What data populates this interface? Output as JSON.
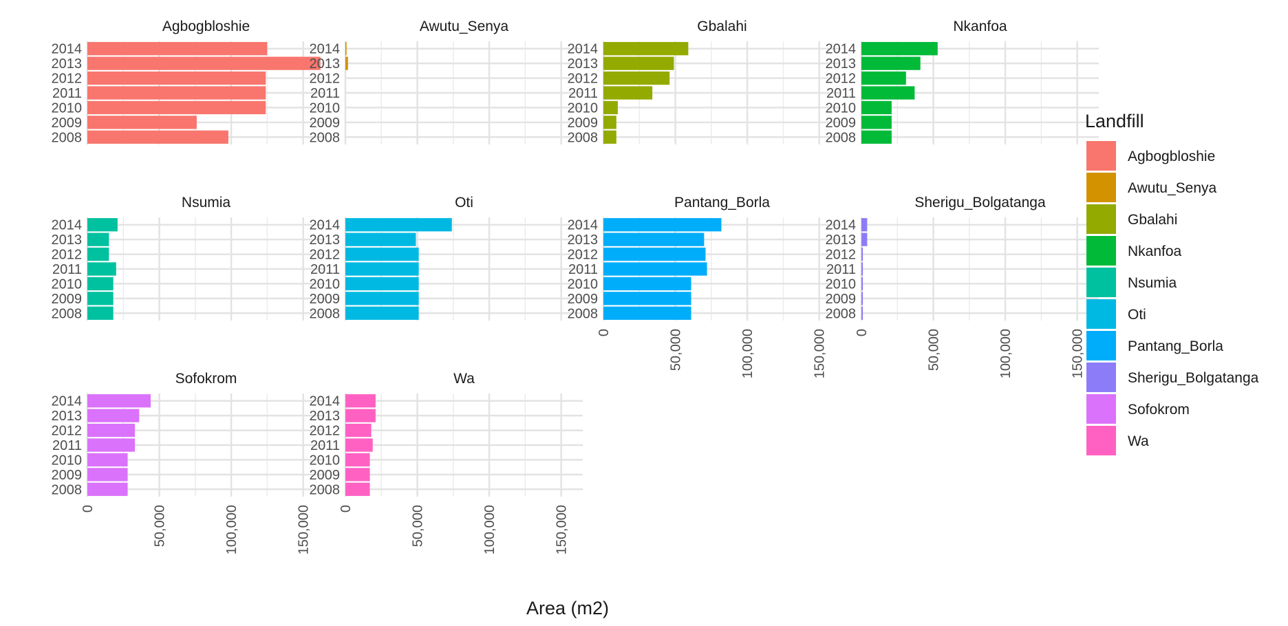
{
  "chart_data": {
    "type": "bar",
    "orientation": "horizontal",
    "facet_layout": "4 columns x 3 rows",
    "years": [
      "2014",
      "2013",
      "2012",
      "2011",
      "2010",
      "2009",
      "2008"
    ],
    "xlabel": "Area (m2)",
    "ylabel": "",
    "xlim": [
      0,
      165000
    ],
    "x_ticks": [
      0,
      50000,
      100000,
      150000
    ],
    "x_tick_labels": [
      "0",
      "50,000",
      "100,000",
      "150,000"
    ],
    "grid": true,
    "legend_title": "Landfill",
    "legend_position": "right",
    "series": [
      {
        "name": "Agbogbloshie",
        "color": "#F8766D",
        "values": [
          125000,
          162000,
          124000,
          124000,
          124000,
          76000,
          98000
        ]
      },
      {
        "name": "Awutu_Senya",
        "color": "#D39200",
        "values": [
          800,
          1800,
          0,
          0,
          0,
          0,
          0
        ]
      },
      {
        "name": "Gbalahi",
        "color": "#93AA00",
        "values": [
          59000,
          49000,
          46000,
          34000,
          10000,
          9000,
          9000
        ]
      },
      {
        "name": "Nkanfoa",
        "color": "#00BA38",
        "values": [
          53000,
          41000,
          31000,
          37000,
          21000,
          21000,
          21000
        ]
      },
      {
        "name": "Nsumia",
        "color": "#00C19F",
        "values": [
          21000,
          15000,
          15000,
          20000,
          18000,
          18000,
          18000
        ]
      },
      {
        "name": "Oti",
        "color": "#00B9E3",
        "values": [
          74000,
          49000,
          51000,
          51000,
          51000,
          51000,
          51000
        ]
      },
      {
        "name": "Pantang_Borla",
        "color": "#00ADFA",
        "values": [
          82000,
          70000,
          71000,
          72000,
          61000,
          61000,
          61000
        ]
      },
      {
        "name": "Sherigu_Bolgatanga",
        "color": "#8C7CF8",
        "values": [
          4000,
          4000,
          1000,
          1000,
          1000,
          1000,
          1000
        ]
      },
      {
        "name": "Sofokrom",
        "color": "#DB72FB",
        "values": [
          44000,
          36000,
          33000,
          33000,
          28000,
          28000,
          28000
        ]
      },
      {
        "name": "Wa",
        "color": "#FF61C3",
        "values": [
          21000,
          21000,
          18000,
          19000,
          17000,
          17000,
          17000
        ]
      }
    ]
  }
}
